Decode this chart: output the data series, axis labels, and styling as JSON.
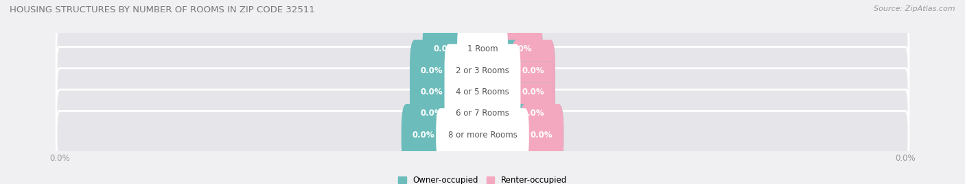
{
  "title": "HOUSING STRUCTURES BY NUMBER OF ROOMS IN ZIP CODE 32511",
  "source": "Source: ZipAtlas.com",
  "categories": [
    "1 Room",
    "2 or 3 Rooms",
    "4 or 5 Rooms",
    "6 or 7 Rooms",
    "8 or more Rooms"
  ],
  "owner_values": [
    0.0,
    0.0,
    0.0,
    0.0,
    0.0
  ],
  "renter_values": [
    0.0,
    0.0,
    0.0,
    0.0,
    0.0
  ],
  "owner_color": "#6cbcbc",
  "renter_color": "#f4a8c0",
  "bar_bg_color": "#e6e6ea",
  "bar_bg_light": "#ededf0",
  "figsize": [
    14.06,
    2.69
  ],
  "dpi": 100,
  "label_fontsize": 8.5,
  "title_fontsize": 9.5,
  "source_fontsize": 8,
  "legend_fontsize": 8.5,
  "owner_label": "Owner-occupied",
  "renter_label": "Renter-occupied",
  "left_tick_label": "0.0%",
  "right_tick_label": "0.0%",
  "bg_color": "#f0f0f2"
}
